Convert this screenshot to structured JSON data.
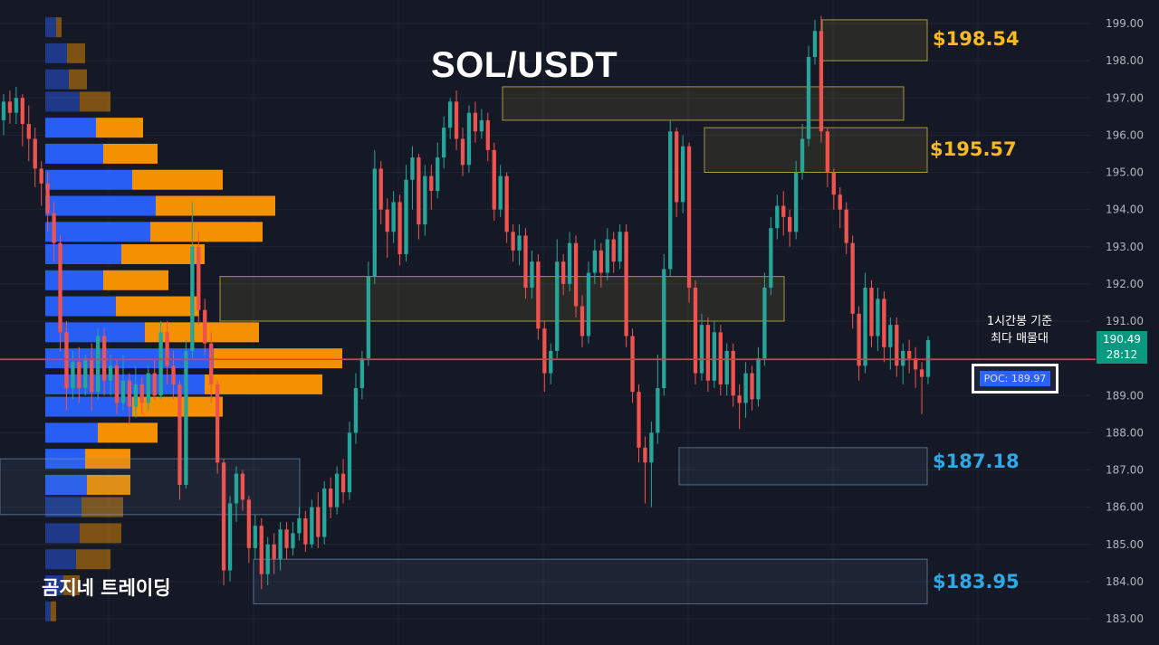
{
  "title": "SOL/USDT",
  "brand": "곰지네 트레이딩",
  "poc_note_line1": "1시간봉 기준",
  "poc_note_line2": "최다 매물대",
  "poc_label": "POC: 189.97",
  "current_price": "190.49",
  "countdown": "28:12",
  "colors": {
    "background": "#151925",
    "up": "#26a69a",
    "down": "#ef5350",
    "poc_line": "#f23645",
    "volume_buy": "#2962ff",
    "volume_sell": "#ff9800",
    "resistance": "#f7b924",
    "support": "#2ea8e6"
  },
  "levels": [
    {
      "label": "$198.54",
      "kind": "resistance",
      "price": 198.54
    },
    {
      "label": "$195.57",
      "kind": "resistance",
      "price": 195.57
    },
    {
      "label": "$187.18",
      "kind": "support",
      "price": 187.18
    },
    {
      "label": "$183.95",
      "kind": "support",
      "price": 183.95
    }
  ],
  "chart_data": {
    "type": "candlestick",
    "title": "SOL/USDT",
    "y_axis": {
      "min": 183.0,
      "max": 199.0,
      "ticks": [
        "199.00",
        "198.00",
        "197.00",
        "196.00",
        "195.00",
        "194.00",
        "193.00",
        "192.00",
        "191.00",
        "190.00",
        "189.00",
        "188.00",
        "187.00",
        "186.00",
        "185.00",
        "184.00",
        "183.00"
      ]
    },
    "poc": 189.97,
    "last_price": 190.49,
    "zones": [
      {
        "from": 198.0,
        "to": 199.1,
        "kind": "resistance"
      },
      {
        "from": 196.4,
        "to": 197.3,
        "kind": "resistance"
      },
      {
        "from": 195.0,
        "to": 196.2,
        "kind": "resistance"
      },
      {
        "from": 191.0,
        "to": 192.2,
        "kind": "resistance"
      },
      {
        "from": 187.6,
        "to": 186.6,
        "kind": "support"
      },
      {
        "from": 183.4,
        "to": 184.6,
        "kind": "support"
      },
      {
        "from": 185.8,
        "to": 187.3,
        "kind": "support"
      }
    ],
    "volume_profile": [
      {
        "price": 198.9,
        "buy": 12,
        "sell": 6
      },
      {
        "price": 198.2,
        "buy": 24,
        "sell": 20
      },
      {
        "price": 197.5,
        "buy": 26,
        "sell": 20
      },
      {
        "price": 196.9,
        "buy": 38,
        "sell": 34
      },
      {
        "price": 196.2,
        "buy": 56,
        "sell": 52
      },
      {
        "price": 195.5,
        "buy": 64,
        "sell": 60
      },
      {
        "price": 194.8,
        "buy": 96,
        "sell": 100
      },
      {
        "price": 194.1,
        "buy": 122,
        "sell": 132
      },
      {
        "price": 193.4,
        "buy": 116,
        "sell": 124
      },
      {
        "price": 192.8,
        "buy": 84,
        "sell": 92
      },
      {
        "price": 192.1,
        "buy": 64,
        "sell": 72
      },
      {
        "price": 191.4,
        "buy": 78,
        "sell": 92
      },
      {
        "price": 190.7,
        "buy": 110,
        "sell": 126
      },
      {
        "price": 190.0,
        "buy": 186,
        "sell": 142
      },
      {
        "price": 189.3,
        "buy": 176,
        "sell": 130
      },
      {
        "price": 188.7,
        "buy": 96,
        "sell": 100
      },
      {
        "price": 188.0,
        "buy": 58,
        "sell": 66
      },
      {
        "price": 187.3,
        "buy": 44,
        "sell": 50
      },
      {
        "price": 186.6,
        "buy": 46,
        "sell": 48
      },
      {
        "price": 186.0,
        "buy": 40,
        "sell": 46
      },
      {
        "price": 185.3,
        "buy": 38,
        "sell": 46
      },
      {
        "price": 184.6,
        "buy": 34,
        "sell": 38
      },
      {
        "price": 183.9,
        "buy": 20,
        "sell": 18
      },
      {
        "price": 183.2,
        "buy": 6,
        "sell": 6
      }
    ],
    "candles": [
      [
        196.4,
        196.9,
        196.0,
        197.1
      ],
      [
        196.9,
        196.6,
        196.3,
        197.2
      ],
      [
        196.6,
        197.0,
        196.3,
        197.3
      ],
      [
        197.0,
        196.3,
        195.7,
        197.1
      ],
      [
        196.3,
        195.9,
        195.3,
        196.8
      ],
      [
        195.9,
        195.1,
        194.6,
        196.2
      ],
      [
        195.1,
        194.7,
        194.1,
        195.3
      ],
      [
        194.7,
        193.9,
        193.4,
        195.0
      ],
      [
        193.9,
        193.1,
        192.6,
        194.2
      ],
      [
        193.1,
        190.7,
        190.2,
        193.3
      ],
      [
        190.7,
        189.2,
        188.6,
        191.0
      ],
      [
        189.2,
        189.9,
        188.9,
        190.2
      ],
      [
        189.9,
        189.2,
        188.8,
        190.3
      ],
      [
        189.2,
        190.0,
        189.0,
        190.1
      ],
      [
        190.0,
        189.1,
        188.6,
        190.4
      ],
      [
        189.1,
        190.6,
        188.9,
        190.8
      ],
      [
        190.6,
        189.4,
        189.0,
        190.8
      ],
      [
        189.4,
        189.8,
        189.0,
        190.1
      ],
      [
        189.8,
        188.8,
        188.5,
        190.0
      ],
      [
        188.8,
        189.4,
        188.6,
        190.1
      ],
      [
        189.4,
        188.7,
        188.2,
        189.6
      ],
      [
        188.7,
        189.3,
        188.4,
        189.8
      ],
      [
        189.3,
        188.8,
        188.5,
        189.5
      ],
      [
        188.8,
        189.6,
        188.6,
        189.8
      ],
      [
        189.6,
        189.0,
        188.9,
        190.0
      ],
      [
        189.0,
        190.7,
        188.9,
        191.0
      ],
      [
        190.7,
        189.8,
        189.3,
        191.0
      ],
      [
        189.8,
        189.3,
        188.9,
        190.2
      ],
      [
        189.3,
        186.6,
        186.2,
        189.4
      ],
      [
        186.6,
        190.2,
        186.5,
        190.5
      ],
      [
        190.2,
        193.0,
        190.0,
        194.2
      ],
      [
        193.0,
        191.3,
        190.9,
        193.4
      ],
      [
        191.3,
        190.4,
        190.1,
        191.6
      ],
      [
        190.4,
        189.3,
        188.8,
        190.7
      ],
      [
        189.3,
        187.2,
        186.9,
        189.4
      ],
      [
        187.2,
        184.3,
        183.9,
        187.3
      ],
      [
        184.3,
        186.1,
        184.0,
        186.3
      ],
      [
        186.1,
        186.9,
        185.6,
        187.1
      ],
      [
        186.9,
        186.2,
        185.9,
        187.0
      ],
      [
        186.2,
        184.9,
        184.5,
        186.3
      ],
      [
        184.9,
        185.5,
        184.6,
        185.8
      ],
      [
        185.5,
        184.2,
        183.8,
        185.7
      ],
      [
        184.2,
        185.0,
        183.9,
        185.2
      ],
      [
        185.0,
        184.6,
        184.2,
        185.3
      ],
      [
        184.6,
        185.4,
        184.3,
        185.6
      ],
      [
        185.4,
        184.9,
        184.6,
        185.6
      ],
      [
        184.9,
        185.3,
        184.7,
        185.6
      ],
      [
        185.3,
        185.7,
        185.1,
        186.0
      ],
      [
        185.7,
        185.0,
        184.8,
        185.9
      ],
      [
        185.0,
        186.0,
        184.9,
        186.2
      ],
      [
        186.0,
        185.2,
        184.9,
        186.4
      ],
      [
        185.2,
        186.5,
        185.0,
        186.7
      ],
      [
        186.5,
        186.0,
        185.7,
        186.8
      ],
      [
        186.0,
        186.9,
        185.8,
        187.1
      ],
      [
        186.9,
        186.4,
        186.1,
        187.3
      ],
      [
        186.4,
        188.0,
        186.2,
        188.3
      ],
      [
        188.0,
        189.2,
        187.7,
        189.6
      ],
      [
        189.2,
        190.0,
        188.9,
        190.2
      ],
      [
        190.0,
        192.2,
        189.8,
        192.6
      ],
      [
        192.2,
        195.1,
        192.0,
        195.6
      ],
      [
        195.1,
        194.0,
        193.6,
        195.3
      ],
      [
        194.0,
        193.4,
        192.7,
        194.3
      ],
      [
        193.4,
        194.2,
        193.1,
        194.5
      ],
      [
        194.2,
        192.8,
        192.5,
        194.4
      ],
      [
        192.8,
        194.8,
        192.6,
        195.2
      ],
      [
        194.8,
        195.4,
        194.0,
        195.7
      ],
      [
        195.4,
        193.6,
        193.2,
        195.5
      ],
      [
        193.6,
        194.9,
        193.3,
        195.2
      ],
      [
        194.9,
        194.5,
        194.0,
        195.2
      ],
      [
        194.5,
        195.4,
        194.3,
        195.8
      ],
      [
        195.4,
        196.2,
        195.1,
        196.5
      ],
      [
        196.2,
        196.9,
        195.9,
        197.0
      ],
      [
        196.9,
        195.9,
        195.6,
        197.2
      ],
      [
        195.9,
        195.2,
        194.9,
        196.2
      ],
      [
        195.2,
        196.6,
        195.0,
        196.8
      ],
      [
        196.6,
        196.1,
        195.8,
        196.9
      ],
      [
        196.1,
        196.4,
        195.9,
        196.7
      ],
      [
        196.4,
        195.6,
        195.3,
        196.6
      ],
      [
        195.6,
        194.0,
        193.7,
        195.8
      ],
      [
        194.0,
        194.9,
        193.8,
        195.2
      ],
      [
        194.9,
        193.4,
        193.1,
        195.0
      ],
      [
        193.4,
        192.9,
        192.6,
        193.6
      ],
      [
        192.9,
        193.3,
        192.5,
        193.6
      ],
      [
        193.3,
        191.9,
        191.6,
        193.5
      ],
      [
        191.9,
        192.6,
        191.6,
        192.9
      ],
      [
        192.6,
        190.8,
        190.5,
        192.8
      ],
      [
        190.8,
        189.6,
        189.1,
        191.0
      ],
      [
        189.6,
        190.2,
        189.3,
        190.4
      ],
      [
        190.2,
        192.6,
        190.0,
        193.2
      ],
      [
        192.6,
        192.0,
        191.7,
        192.8
      ],
      [
        192.0,
        193.1,
        191.8,
        193.4
      ],
      [
        193.1,
        191.4,
        191.1,
        193.3
      ],
      [
        191.4,
        190.6,
        190.3,
        191.7
      ],
      [
        190.6,
        192.3,
        190.4,
        192.6
      ],
      [
        192.3,
        192.9,
        192.0,
        193.2
      ],
      [
        192.9,
        192.3,
        191.9,
        193.1
      ],
      [
        192.3,
        193.2,
        192.1,
        193.5
      ],
      [
        193.2,
        192.6,
        192.3,
        193.4
      ],
      [
        192.6,
        193.4,
        192.4,
        193.6
      ],
      [
        193.4,
        190.6,
        190.3,
        193.6
      ],
      [
        190.6,
        189.1,
        188.8,
        190.8
      ],
      [
        189.1,
        187.6,
        187.2,
        189.3
      ],
      [
        187.6,
        187.2,
        186.1,
        187.9
      ],
      [
        187.2,
        188.0,
        186.0,
        188.3
      ],
      [
        188.0,
        189.2,
        187.7,
        190.1
      ],
      [
        189.2,
        192.4,
        189.0,
        192.8
      ],
      [
        192.4,
        196.1,
        192.2,
        196.4
      ],
      [
        196.1,
        194.2,
        193.8,
        196.2
      ],
      [
        194.2,
        195.7,
        193.9,
        196.0
      ],
      [
        195.7,
        191.9,
        191.5,
        195.8
      ],
      [
        191.9,
        189.6,
        189.3,
        192.1
      ],
      [
        189.6,
        190.9,
        189.4,
        191.2
      ],
      [
        190.9,
        189.4,
        189.1,
        191.1
      ],
      [
        189.4,
        190.7,
        189.2,
        191.0
      ],
      [
        190.7,
        189.3,
        189.0,
        190.9
      ],
      [
        189.3,
        190.2,
        189.0,
        190.4
      ],
      [
        190.2,
        189.0,
        188.7,
        190.4
      ],
      [
        189.0,
        188.8,
        188.1,
        189.3
      ],
      [
        188.8,
        189.6,
        188.4,
        189.9
      ],
      [
        189.6,
        188.9,
        188.6,
        189.8
      ],
      [
        188.9,
        190.0,
        188.7,
        190.3
      ],
      [
        190.0,
        191.9,
        189.8,
        192.3
      ],
      [
        191.9,
        193.5,
        191.7,
        193.8
      ],
      [
        193.5,
        194.1,
        193.2,
        194.4
      ],
      [
        194.1,
        193.8,
        193.3,
        194.5
      ],
      [
        193.8,
        193.4,
        193.0,
        194.0
      ],
      [
        193.4,
        195.0,
        193.2,
        195.3
      ],
      [
        195.0,
        195.9,
        194.8,
        196.3
      ],
      [
        195.9,
        198.1,
        195.7,
        198.4
      ],
      [
        198.1,
        198.8,
        197.9,
        199.1
      ],
      [
        198.8,
        196.1,
        195.8,
        199.2
      ],
      [
        196.1,
        195.0,
        194.6,
        196.2
      ],
      [
        195.0,
        194.4,
        194.0,
        195.1
      ],
      [
        194.4,
        194.0,
        193.5,
        194.6
      ],
      [
        194.0,
        193.1,
        192.8,
        194.2
      ],
      [
        193.1,
        191.2,
        190.8,
        193.3
      ],
      [
        191.2,
        189.8,
        189.4,
        191.4
      ],
      [
        189.8,
        191.9,
        189.6,
        192.3
      ],
      [
        191.9,
        190.6,
        190.3,
        192.1
      ],
      [
        190.6,
        191.6,
        190.2,
        191.9
      ],
      [
        191.6,
        190.3,
        189.9,
        191.8
      ],
      [
        190.3,
        190.9,
        189.7,
        191.1
      ],
      [
        190.9,
        189.8,
        189.5,
        191.1
      ],
      [
        189.8,
        190.2,
        189.3,
        190.4
      ],
      [
        190.2,
        190.0,
        189.6,
        190.5
      ],
      [
        190.0,
        189.7,
        189.2,
        190.3
      ],
      [
        189.7,
        189.5,
        188.5,
        189.9
      ],
      [
        189.5,
        190.49,
        189.3,
        190.6
      ]
    ]
  }
}
